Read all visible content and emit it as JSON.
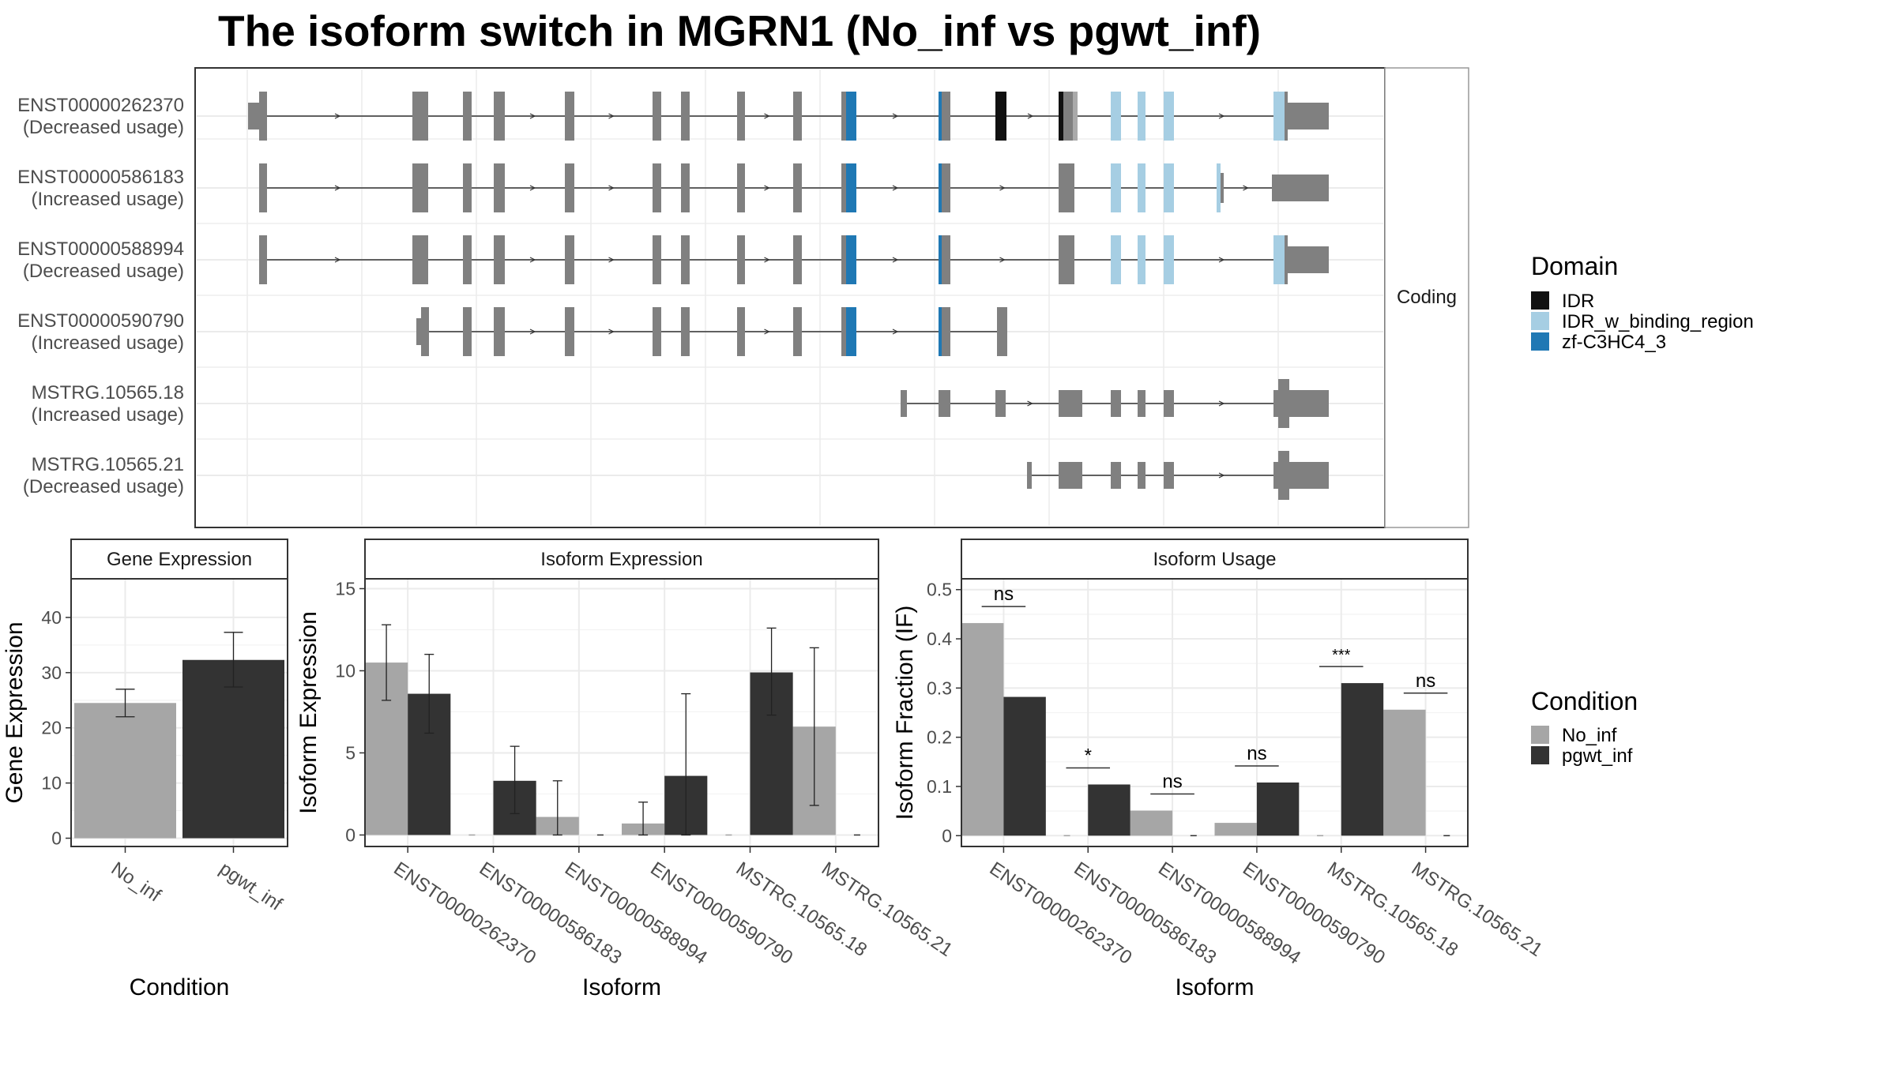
{
  "title": "The isoform switch in MGRN1 (No_inf vs pgwt_inf)",
  "facet_label": "Coding",
  "legends": {
    "domain": {
      "title": "Domain",
      "items": [
        {
          "label": "IDR",
          "color": "#111111"
        },
        {
          "label": "IDR_w_binding_region",
          "color": "#a6cee3"
        },
        {
          "label": "zf-C3HC4_3",
          "color": "#1f78b4"
        }
      ]
    },
    "condition": {
      "title": "Condition",
      "items": [
        {
          "label": "No_inf",
          "color": "#a6a6a6"
        },
        {
          "label": "pgwt_inf",
          "color": "#333333"
        }
      ]
    }
  },
  "isoforms": [
    {
      "id": "ENST00000262370",
      "usage": "(Decreased usage)"
    },
    {
      "id": "ENST00000586183",
      "usage": "(Increased usage)"
    },
    {
      "id": "ENST00000588994",
      "usage": "(Decreased usage)"
    },
    {
      "id": "ENST00000590790",
      "usage": "(Increased usage)"
    },
    {
      "id": "MSTRG.10565.18",
      "usage": "(Increased usage)"
    },
    {
      "id": "MSTRG.10565.21",
      "usage": "(Decreased usage)"
    }
  ],
  "chart_data": [
    {
      "type": "bar",
      "title": "Gene Expression",
      "xlabel": "Condition",
      "ylabel": "Gene Expression",
      "categories": [
        "No_inf",
        "pgwt_inf"
      ],
      "values": [
        24.5,
        32.3
      ],
      "error_low": [
        22.0,
        27.4
      ],
      "error_high": [
        27.0,
        37.3
      ],
      "ylim": [
        -1.5,
        47
      ],
      "yticks": [
        0,
        10,
        20,
        30,
        40
      ],
      "colors": [
        "#a6a6a6",
        "#333333"
      ]
    },
    {
      "type": "bar",
      "title": "Isoform Expression",
      "xlabel": "Isoform",
      "ylabel": "Isoform Expression",
      "categories": [
        "ENST00000262370",
        "ENST00000586183",
        "ENST00000588994",
        "ENST00000590790",
        "MSTRG.10565.18",
        "MSTRG.10565.21"
      ],
      "series": [
        {
          "name": "No_inf",
          "values": [
            10.5,
            0,
            1.1,
            0.7,
            0,
            6.6
          ],
          "error_low": [
            8.2,
            null,
            0,
            0,
            null,
            1.8
          ],
          "error_high": [
            12.8,
            null,
            3.3,
            2.0,
            null,
            11.4
          ]
        },
        {
          "name": "pgwt_inf",
          "values": [
            8.6,
            3.3,
            0,
            3.6,
            9.9,
            0
          ],
          "error_low": [
            6.2,
            1.3,
            null,
            0,
            7.3,
            null
          ],
          "error_high": [
            11.0,
            5.4,
            null,
            8.6,
            12.6,
            null
          ]
        }
      ],
      "ylim": [
        -0.7,
        15.6
      ],
      "yticks": [
        0,
        5,
        10,
        15
      ],
      "colors": [
        "#a6a6a6",
        "#333333"
      ]
    },
    {
      "type": "bar",
      "title": "Isoform Usage",
      "xlabel": "Isoform",
      "ylabel": "Isoform Fraction (IF)",
      "categories": [
        "ENST00000262370",
        "ENST00000586183",
        "ENST00000588994",
        "ENST00000590790",
        "MSTRG.10565.18",
        "MSTRG.10565.21"
      ],
      "series": [
        {
          "name": "No_inf",
          "values": [
            0.432,
            0,
            0.051,
            0.026,
            0,
            0.256
          ]
        },
        {
          "name": "pgwt_inf",
          "values": [
            0.282,
            0.104,
            0,
            0.108,
            0.31,
            0
          ]
        }
      ],
      "significance": [
        "ns",
        "*",
        "ns",
        "ns",
        "***",
        "ns"
      ],
      "ylim": [
        -0.022,
        0.522
      ],
      "yticks": [
        0.0,
        0.1,
        0.2,
        0.3,
        0.4,
        0.5
      ],
      "colors": [
        "#a6a6a6",
        "#333333"
      ]
    }
  ]
}
